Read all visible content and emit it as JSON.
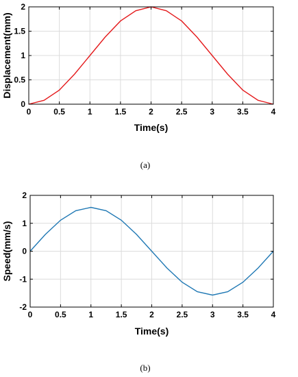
{
  "chart_data": [
    {
      "type": "line",
      "title": "",
      "xlabel": "Time(s)",
      "ylabel": "Displacement(mm)",
      "xlim": [
        0,
        4
      ],
      "ylim": [
        0,
        2
      ],
      "xticks": [
        "0",
        "0.5",
        "1",
        "1.5",
        "2",
        "2.5",
        "3",
        "3.5",
        "4"
      ],
      "yticks": [
        "0",
        "0.5",
        "1",
        "1.5",
        "2"
      ],
      "grid": true,
      "legend": "none",
      "caption": "(a)",
      "series": [
        {
          "color": "#e41a1c",
          "x": [
            0,
            0.25,
            0.5,
            0.75,
            1,
            1.25,
            1.5,
            1.75,
            2,
            2.25,
            2.5,
            2.75,
            3,
            3.25,
            3.5,
            3.75,
            4
          ],
          "y": [
            0,
            0.08,
            0.29,
            0.62,
            1.0,
            1.38,
            1.71,
            1.92,
            2.0,
            1.92,
            1.71,
            1.38,
            1.0,
            0.62,
            0.29,
            0.08,
            0
          ]
        }
      ]
    },
    {
      "type": "line",
      "title": "",
      "xlabel": "Time(s)",
      "ylabel": "Speed(mm/s)",
      "xlim": [
        0,
        4
      ],
      "ylim": [
        -2,
        2
      ],
      "xticks": [
        "0",
        "0.5",
        "1",
        "1.5",
        "2",
        "2.5",
        "3",
        "3.5",
        "4"
      ],
      "yticks": [
        "-2",
        "-1",
        "0",
        "1",
        "2"
      ],
      "grid": true,
      "legend": "none",
      "caption": "(b)",
      "series": [
        {
          "color": "#1f78b4",
          "x": [
            0,
            0.25,
            0.5,
            0.75,
            1,
            1.25,
            1.5,
            1.75,
            2,
            2.25,
            2.5,
            2.75,
            3,
            3.25,
            3.5,
            3.75,
            4
          ],
          "y": [
            0,
            0.6,
            1.11,
            1.45,
            1.57,
            1.45,
            1.11,
            0.6,
            0,
            -0.6,
            -1.11,
            -1.45,
            -1.57,
            -1.45,
            -1.11,
            -0.6,
            0
          ]
        }
      ]
    }
  ]
}
